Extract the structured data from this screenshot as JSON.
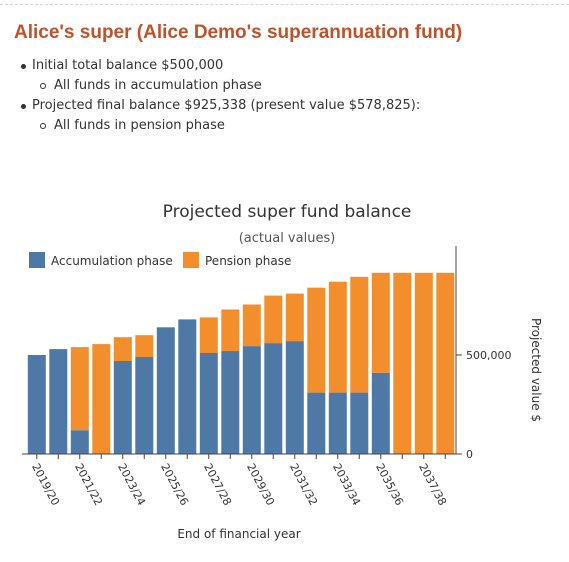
{
  "page": {
    "heading": "Alice's super (Alice Demo's superannuation fund)",
    "bullets": [
      {
        "text": "Initial total balance $500,000",
        "sub": "All funds in accumulation phase"
      },
      {
        "text": "Projected final balance $925,338 (present value $578,825):",
        "sub": "All funds in pension phase"
      }
    ]
  },
  "colors": {
    "heading": "#c0522b",
    "accumulation": "#4e79a7",
    "pension": "#f28e2b"
  },
  "chart_data": {
    "type": "bar",
    "stacked": true,
    "title": "Projected super fund balance",
    "subtitle": "(actual values)",
    "xlabel": "End of financial year",
    "ylabel": "Projected value $",
    "y_axis_side": "right",
    "ylim": [
      0,
      1000000
    ],
    "yticks": [
      0,
      500000
    ],
    "ytick_labels": [
      "0",
      "500,000"
    ],
    "legend_position": "top-left",
    "categories": [
      "2019/20",
      "2020/21",
      "2021/22",
      "2022/23",
      "2023/24",
      "2024/25",
      "2025/26",
      "2026/27",
      "2027/28",
      "2028/29",
      "2029/30",
      "2030/31",
      "2031/32",
      "2032/33",
      "2033/34",
      "2034/35",
      "2035/36",
      "2036/37",
      "2037/38",
      "2038/39"
    ],
    "xtick_labels": [
      "2019/20",
      "",
      "2021/22",
      "",
      "2023/24",
      "",
      "2025/26",
      "",
      "2027/28",
      "",
      "2029/30",
      "",
      "2031/32",
      "",
      "2033/34",
      "",
      "2035/36",
      "",
      "2037/38",
      ""
    ],
    "series": [
      {
        "name": "Accumulation phase",
        "color": "#4e79a7",
        "values": [
          500000,
          530000,
          120000,
          0,
          470000,
          490000,
          640000,
          680000,
          510000,
          520000,
          545000,
          560000,
          570000,
          310000,
          310000,
          310000,
          410000,
          0,
          0,
          0
        ]
      },
      {
        "name": "Pension phase",
        "color": "#f28e2b",
        "values": [
          0,
          0,
          420000,
          555000,
          120000,
          110000,
          0,
          0,
          180000,
          210000,
          210000,
          240000,
          240000,
          530000,
          560000,
          585000,
          505000,
          915000,
          915000,
          915000
        ]
      }
    ]
  }
}
